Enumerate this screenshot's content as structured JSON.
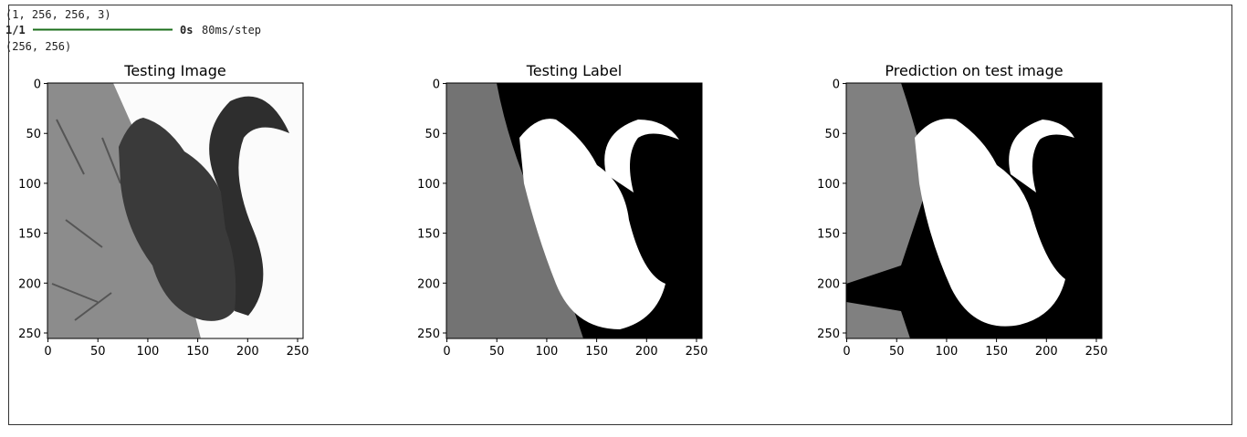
{
  "output": {
    "shape_line": "(1, 256, 256, 3)",
    "progress_count": "1/1",
    "progress_time": "0s",
    "progress_rate": "80ms/step",
    "label_shape_line": "(256, 256)"
  },
  "plots": [
    {
      "title": "Testing Image",
      "xlim": [
        -0.5,
        255.5
      ],
      "ylim": [
        255.5,
        -0.5
      ],
      "xticks": [
        0,
        50,
        100,
        150,
        200,
        250
      ],
      "yticks": [
        0,
        50,
        100,
        150,
        200,
        250
      ]
    },
    {
      "title": "Testing Label",
      "xlim": [
        -0.5,
        255.5
      ],
      "ylim": [
        255.5,
        -0.5
      ],
      "xticks": [
        0,
        50,
        100,
        150,
        200,
        250
      ],
      "yticks": [
        0,
        50,
        100,
        150,
        200,
        250
      ]
    },
    {
      "title": "Prediction on test image",
      "xlim": [
        -0.5,
        255.5
      ],
      "ylim": [
        255.5,
        -0.5
      ],
      "xticks": [
        0,
        50,
        100,
        150,
        200,
        250
      ],
      "yticks": [
        0,
        50,
        100,
        150,
        200,
        250
      ]
    }
  ]
}
